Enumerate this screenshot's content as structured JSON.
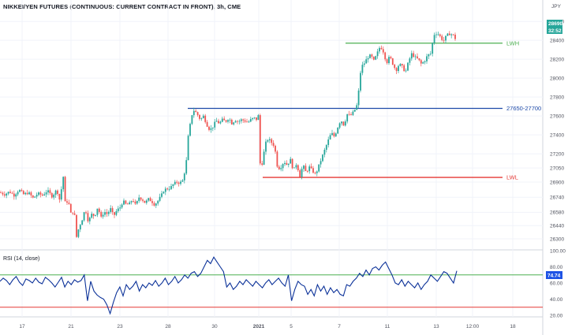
{
  "title": "NIKKEI/YEN FUTURES (CONTINUOUS: CURRENT CONTRACT IN FRONT), 3h, CME",
  "currency": "JPY",
  "price_tag": {
    "value": "28690",
    "countdown": "32:52",
    "color": "#26a69a"
  },
  "rsi_tag": {
    "value": "74.74",
    "color": "#1e53e5"
  },
  "colors": {
    "up": "#26a69a",
    "down": "#ef5350",
    "rsi": "#0c3299",
    "lvl_green": "#4caf50",
    "lvl_blue": "#1e4aa8",
    "lvl_red": "#e53935"
  },
  "chart_data": [
    {
      "type": "candlestick",
      "title": "NIKKEI/YEN FUTURES (CONTINUOUS: CURRENT CONTRACT IN FRONT), 3h, CME",
      "x_ticks": [
        "17",
        "21",
        "23",
        "28",
        "30",
        "2021",
        "5",
        "7",
        "11",
        "13",
        "12:00",
        "18"
      ],
      "y_ticks": [
        26300,
        26440,
        26580,
        26740,
        26900,
        27050,
        27200,
        27400,
        27600,
        27800,
        28000,
        28200,
        28400,
        28600
      ],
      "ylim": [
        26200,
        28760
      ],
      "close_path": [
        [
          0,
          26790
        ],
        [
          6,
          26770
        ],
        [
          12,
          26800
        ],
        [
          18,
          26760
        ],
        [
          24,
          26820
        ],
        [
          30,
          26770
        ],
        [
          36,
          26790
        ],
        [
          42,
          26730
        ],
        [
          48,
          26780
        ],
        [
          54,
          26760
        ],
        [
          60,
          26810
        ],
        [
          66,
          26750
        ],
        [
          72,
          26820
        ],
        [
          76,
          26700
        ],
        [
          80,
          26980
        ],
        [
          83,
          26640
        ],
        [
          86,
          26720
        ],
        [
          90,
          26560
        ],
        [
          94,
          26600
        ],
        [
          97,
          26320
        ],
        [
          100,
          26420
        ],
        [
          104,
          26500
        ],
        [
          108,
          26620
        ],
        [
          112,
          26480
        ],
        [
          116,
          26560
        ],
        [
          120,
          26540
        ],
        [
          124,
          26640
        ],
        [
          128,
          26520
        ],
        [
          132,
          26590
        ],
        [
          136,
          26560
        ],
        [
          140,
          26620
        ],
        [
          144,
          26540
        ],
        [
          148,
          26600
        ],
        [
          152,
          26630
        ],
        [
          156,
          26700
        ],
        [
          160,
          26660
        ],
        [
          164,
          26670
        ],
        [
          168,
          26720
        ],
        [
          172,
          26650
        ],
        [
          176,
          26740
        ],
        [
          180,
          26720
        ],
        [
          184,
          26680
        ],
        [
          188,
          26720
        ],
        [
          192,
          26700
        ],
        [
          196,
          26660
        ],
        [
          200,
          26700
        ],
        [
          204,
          26750
        ],
        [
          208,
          26820
        ],
        [
          212,
          26830
        ],
        [
          216,
          26840
        ],
        [
          220,
          26880
        ],
        [
          224,
          26900
        ],
        [
          228,
          26890
        ],
        [
          232,
          26920
        ],
        [
          236,
          27100
        ],
        [
          238,
          27350
        ],
        [
          240,
          27450
        ],
        [
          242,
          27560
        ],
        [
          244,
          27640
        ],
        [
          246,
          27660
        ],
        [
          250,
          27620
        ],
        [
          254,
          27560
        ],
        [
          258,
          27600
        ],
        [
          262,
          27510
        ],
        [
          266,
          27450
        ],
        [
          270,
          27490
        ],
        [
          274,
          27550
        ],
        [
          278,
          27520
        ],
        [
          282,
          27560
        ],
        [
          286,
          27540
        ],
        [
          290,
          27580
        ],
        [
          294,
          27520
        ],
        [
          298,
          27560
        ],
        [
          302,
          27540
        ],
        [
          306,
          27560
        ],
        [
          310,
          27550
        ],
        [
          314,
          27530
        ],
        [
          318,
          27560
        ],
        [
          322,
          27580
        ],
        [
          326,
          27560
        ],
        [
          328,
          27620
        ],
        [
          330,
          27040
        ],
        [
          333,
          27120
        ],
        [
          336,
          27300
        ],
        [
          340,
          27360
        ],
        [
          344,
          27320
        ],
        [
          348,
          27280
        ],
        [
          352,
          27040
        ],
        [
          356,
          27060
        ],
        [
          360,
          27120
        ],
        [
          364,
          27080
        ],
        [
          368,
          27140
        ],
        [
          372,
          27020
        ],
        [
          376,
          27100
        ],
        [
          380,
          26960
        ],
        [
          384,
          27080
        ],
        [
          388,
          27000
        ],
        [
          392,
          27060
        ],
        [
          396,
          27020
        ],
        [
          400,
          26980
        ],
        [
          404,
          27070
        ],
        [
          408,
          27160
        ],
        [
          412,
          27250
        ],
        [
          416,
          27340
        ],
        [
          420,
          27420
        ],
        [
          424,
          27380
        ],
        [
          428,
          27480
        ],
        [
          432,
          27560
        ],
        [
          436,
          27500
        ],
        [
          440,
          27620
        ],
        [
          444,
          27600
        ],
        [
          448,
          27640
        ],
        [
          452,
          27700
        ],
        [
          454,
          27800
        ],
        [
          456,
          28000
        ],
        [
          458,
          28120
        ],
        [
          462,
          28160
        ],
        [
          466,
          28220
        ],
        [
          470,
          28240
        ],
        [
          474,
          28180
        ],
        [
          478,
          28260
        ],
        [
          482,
          28340
        ],
        [
          486,
          28280
        ],
        [
          490,
          28160
        ],
        [
          494,
          28230
        ],
        [
          498,
          28150
        ],
        [
          502,
          28080
        ],
        [
          506,
          28150
        ],
        [
          510,
          28120
        ],
        [
          514,
          28060
        ],
        [
          518,
          28180
        ],
        [
          522,
          28260
        ],
        [
          526,
          28220
        ],
        [
          530,
          28200
        ],
        [
          534,
          28150
        ],
        [
          538,
          28180
        ],
        [
          542,
          28240
        ],
        [
          546,
          28260
        ],
        [
          550,
          28460
        ],
        [
          554,
          28480
        ],
        [
          558,
          28440
        ],
        [
          562,
          28390
        ],
        [
          566,
          28450
        ],
        [
          570,
          28470
        ],
        [
          574,
          28460
        ],
        [
          577,
          28420
        ],
        [
          579,
          28690
        ]
      ],
      "levels": [
        {
          "label": "LWH",
          "value": 28370,
          "x_from": 438,
          "color": "#4caf50"
        },
        {
          "label": "27650-27700",
          "value": 27680,
          "x_from": 238,
          "color": "#1e4aa8"
        },
        {
          "label": "LWL",
          "value": 26950,
          "x_from": 333,
          "color": "#e53935"
        }
      ]
    },
    {
      "type": "line",
      "title": "RSI (14, close)",
      "y_ticks": [
        100,
        80,
        60,
        40,
        20
      ],
      "ylim": [
        20,
        100
      ],
      "levels": [
        {
          "value": 70,
          "color": "#4caf50"
        },
        {
          "value": 30,
          "color": "#e53935"
        }
      ],
      "series": [
        {
          "values": [
            62,
            66,
            63,
            58,
            64,
            68,
            61,
            57,
            65,
            63,
            60,
            66,
            61,
            59,
            67,
            64,
            60,
            55,
            61,
            67,
            55,
            62,
            58,
            64,
            61,
            63,
            70,
            38,
            62,
            50,
            45,
            42,
            40,
            33,
            22,
            36,
            48,
            55,
            44,
            58,
            52,
            56,
            62,
            50,
            58,
            54,
            60,
            57,
            63,
            56,
            60,
            66,
            58,
            62,
            68,
            60,
            64,
            70,
            66,
            72,
            74,
            68,
            72,
            80,
            88,
            84,
            92,
            86,
            80,
            74,
            55,
            60,
            52,
            56,
            62,
            58,
            64,
            60,
            56,
            62,
            58,
            54,
            60,
            64,
            58,
            62,
            66,
            60,
            56,
            70,
            38,
            52,
            62,
            58,
            56,
            46,
            52,
            44,
            58,
            50,
            56,
            46,
            54,
            48,
            52,
            46,
            44,
            58,
            56,
            62,
            66,
            72,
            68,
            76,
            70,
            78,
            80,
            76,
            82,
            86,
            78,
            70,
            60,
            58,
            64,
            56,
            62,
            58,
            54,
            60,
            52,
            58,
            62,
            70,
            66,
            62,
            68,
            74,
            72,
            66,
            60,
            75
          ]
        }
      ]
    }
  ]
}
